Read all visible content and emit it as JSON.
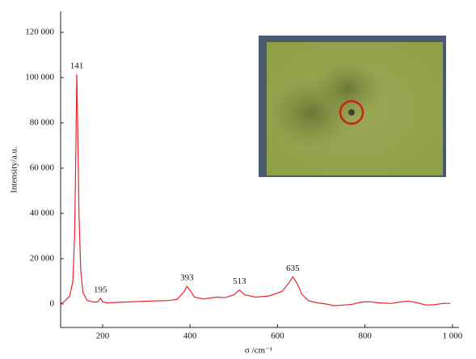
{
  "chart_data": {
    "type": "line",
    "x_label": "σ /cm⁻¹",
    "y_label": "Intensity/a.u.",
    "x": [
      104,
      115,
      125,
      132,
      136,
      139,
      141,
      143,
      146,
      150,
      155,
      165,
      180,
      190,
      195,
      200,
      210,
      250,
      300,
      350,
      370,
      385,
      393,
      400,
      410,
      430,
      460,
      480,
      500,
      513,
      525,
      550,
      580,
      610,
      625,
      635,
      645,
      655,
      670,
      690,
      710,
      730,
      750,
      770,
      790,
      810,
      830,
      860,
      880,
      900,
      920,
      940,
      960,
      980,
      995
    ],
    "series": [
      {
        "color": "#e8262b",
        "values": [
          0,
          1500,
          3500,
          10000,
          30000,
          70000,
          101500,
          80000,
          40000,
          15000,
          5000,
          1500,
          800,
          1000,
          2500,
          1000,
          500,
          800,
          1200,
          1500,
          2000,
          5000,
          7800,
          6000,
          3000,
          2200,
          3000,
          2800,
          4000,
          6200,
          4000,
          3000,
          3500,
          5500,
          9000,
          12000,
          9000,
          4500,
          1500,
          500,
          0,
          -800,
          -500,
          -200,
          800,
          1000,
          500,
          200,
          900,
          1200,
          500,
          -500,
          -300,
          300,
          200
        ]
      }
    ],
    "xlim": [
      104,
      1015
    ],
    "ylim": [
      -10400,
      129300
    ],
    "xticks": [
      200,
      400,
      600,
      800,
      {
        "value": 1000,
        "label": "1 000"
      }
    ],
    "yticks": [
      0,
      {
        "value": 20000,
        "label": "20 000"
      },
      {
        "value": 40000,
        "label": "40 000"
      },
      {
        "value": 60000,
        "label": "60 000"
      },
      {
        "value": 80000,
        "label": "80 000"
      },
      {
        "value": 100000,
        "label": "100 000"
      },
      {
        "value": 120000,
        "label": "120 000"
      }
    ],
    "annotations": [
      {
        "x": 141,
        "y": 101500,
        "label": "141"
      },
      {
        "x": 195,
        "y": 2500,
        "label": "195"
      },
      {
        "x": 393,
        "y": 7800,
        "label": "393"
      },
      {
        "x": 513,
        "y": 6200,
        "label": "513"
      },
      {
        "x": 635,
        "y": 12000,
        "label": "635"
      }
    ]
  }
}
